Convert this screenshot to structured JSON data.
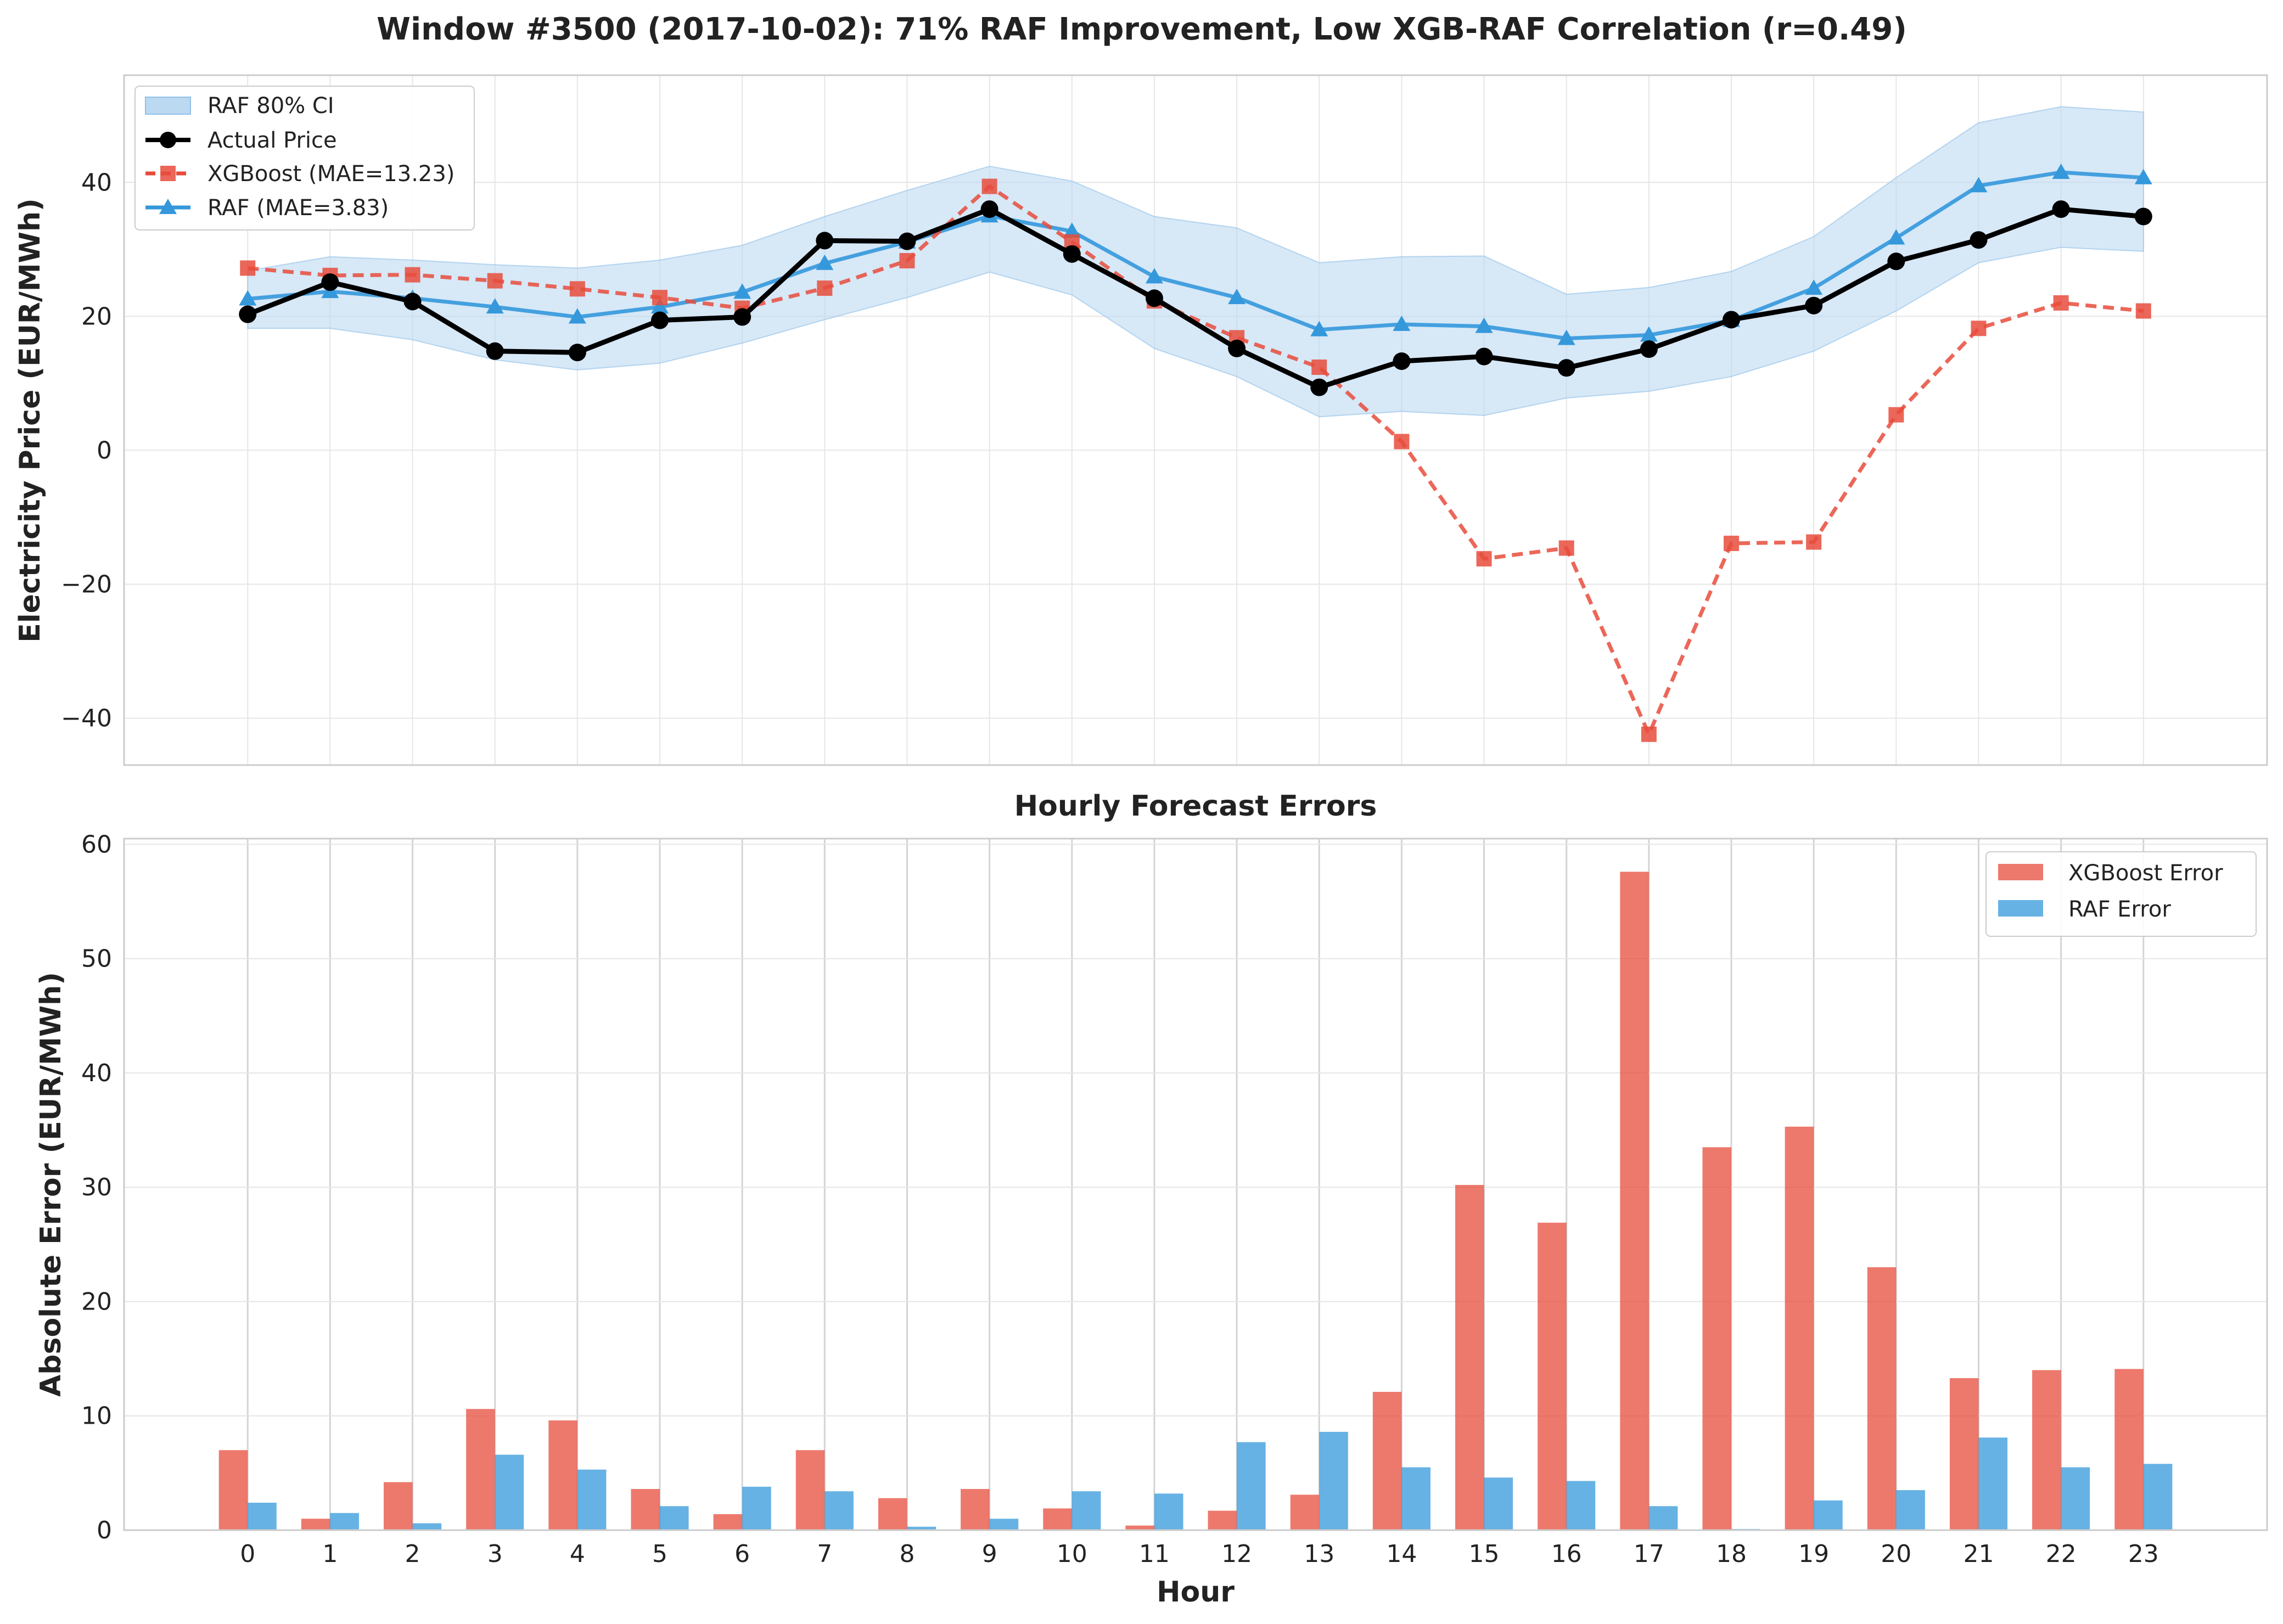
{
  "figure": {
    "title": "Window #3500 (2017-10-02): 71% RAF Improvement, Low XGB-RAF Correlation (r=0.49)"
  },
  "colors": {
    "actual": "#000000",
    "xgboost": "#e74c3c",
    "raf": "#3498db",
    "ci_fill": "#bcd9f2",
    "grid": "#e6e6e6",
    "frame": "#cccccc"
  },
  "chart_data": [
    {
      "type": "line",
      "title": "",
      "xlabel": "",
      "ylabel": "Electricity Price (EUR/MWh)",
      "x": [
        0,
        1,
        2,
        3,
        4,
        5,
        6,
        7,
        8,
        9,
        10,
        11,
        12,
        13,
        14,
        15,
        16,
        17,
        18,
        19,
        20,
        21,
        22,
        23
      ],
      "xlim": [
        -1.5,
        24.5
      ],
      "ylim": [
        -47,
        56
      ],
      "yticks": [
        -40,
        -20,
        0,
        20,
        40
      ],
      "ytick_labels": [
        "−40",
        "−20",
        "0",
        "20",
        "40"
      ],
      "grid": true,
      "legend_position": "top-left",
      "band": {
        "name": "RAF 80% CI",
        "lower": [
          18.2,
          18.2,
          16.5,
          13.5,
          12,
          13,
          16,
          19.5,
          22.8,
          26.6,
          23.2,
          15.2,
          11,
          5,
          5.8,
          5.2,
          7.8,
          8.8,
          11,
          14.8,
          20.8,
          28,
          30.3,
          29.7
        ],
        "upper": [
          26.8,
          28.9,
          28.4,
          27.7,
          27.2,
          28.4,
          30.6,
          34.9,
          38.8,
          42.4,
          40.2,
          34.9,
          33.2,
          28,
          28.9,
          29,
          23.3,
          24.3,
          26.7,
          31.9,
          40.7,
          48.9,
          51.3,
          50.5
        ]
      },
      "series": [
        {
          "name": "Actual Price",
          "values": [
            20.3,
            25.1,
            22.2,
            14.8,
            14.6,
            19.4,
            19.9,
            31.3,
            31.2,
            36.0,
            29.3,
            22.7,
            15.2,
            9.4,
            13.3,
            14.0,
            12.3,
            15.1,
            19.5,
            21.6,
            28.2,
            31.4,
            36.0,
            34.9
          ]
        },
        {
          "name": "XGBoost (MAE=13.23)",
          "values": [
            27.2,
            26.1,
            26.2,
            25.3,
            24.1,
            22.8,
            21.2,
            24.2,
            28.3,
            39.4,
            31.1,
            22.3,
            16.8,
            12.4,
            1.3,
            -16.2,
            -14.6,
            -42.4,
            -13.9,
            -13.7,
            5.3,
            18.2,
            22.0,
            20.8
          ]
        },
        {
          "name": "RAF (MAE=3.83)",
          "values": [
            22.6,
            23.7,
            22.7,
            21.4,
            19.9,
            21.4,
            23.6,
            27.9,
            31.1,
            35.0,
            32.7,
            25.9,
            22.8,
            18.0,
            18.8,
            18.5,
            16.7,
            17.2,
            19.4,
            24.2,
            31.7,
            39.5,
            41.5,
            40.7
          ]
        }
      ]
    },
    {
      "type": "bar",
      "title": "Hourly Forecast Errors",
      "xlabel": "Hour",
      "ylabel": "Absolute Error (EUR/MWh)",
      "categories": [
        "0",
        "1",
        "2",
        "3",
        "4",
        "5",
        "6",
        "7",
        "8",
        "9",
        "10",
        "11",
        "12",
        "13",
        "14",
        "15",
        "16",
        "17",
        "18",
        "19",
        "20",
        "21",
        "22",
        "23"
      ],
      "xlim": [
        -1.5,
        24.5
      ],
      "ylim": [
        0,
        60.5
      ],
      "yticks": [
        0,
        10,
        20,
        30,
        40,
        50,
        60
      ],
      "ytick_labels": [
        "0",
        "10",
        "20",
        "30",
        "40",
        "50",
        "60"
      ],
      "grid": true,
      "legend_position": "top-right",
      "series": [
        {
          "name": "XGBoost Error",
          "values": [
            7.0,
            1.0,
            4.2,
            10.6,
            9.6,
            3.6,
            1.4,
            7.0,
            2.8,
            3.6,
            1.9,
            0.4,
            1.7,
            3.1,
            12.1,
            30.2,
            26.9,
            57.6,
            33.5,
            35.3,
            23.0,
            13.3,
            14.0,
            14.1
          ]
        },
        {
          "name": "RAF Error",
          "values": [
            2.4,
            1.5,
            0.6,
            6.6,
            5.3,
            2.1,
            3.8,
            3.4,
            0.3,
            1.0,
            3.4,
            3.2,
            7.7,
            8.6,
            5.5,
            4.6,
            4.3,
            2.1,
            0.1,
            2.6,
            3.5,
            8.1,
            5.5,
            5.8
          ]
        }
      ]
    }
  ]
}
